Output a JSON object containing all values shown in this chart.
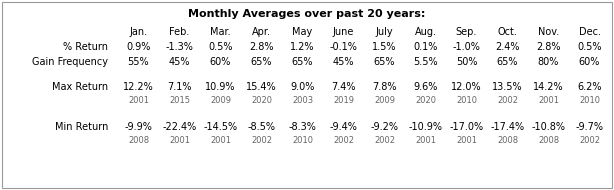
{
  "title": "Monthly Averages over past 20 years:",
  "columns": [
    "Jan.",
    "Feb.",
    "Mar.",
    "Apr.",
    "May",
    "June",
    "July",
    "Aug.",
    "Sep.",
    "Oct.",
    "Nov.",
    "Dec."
  ],
  "pct_return": [
    "0.9%",
    "-1.3%",
    "0.5%",
    "2.8%",
    "1.2%",
    "-0.1%",
    "1.5%",
    "0.1%",
    "-1.0%",
    "2.4%",
    "2.8%",
    "0.5%"
  ],
  "gain_freq": [
    "55%",
    "45%",
    "60%",
    "65%",
    "65%",
    "45%",
    "65%",
    "5.5%",
    "50%",
    "65%",
    "80%",
    "60%"
  ],
  "max_return": [
    "12.2%",
    "7.1%",
    "10.9%",
    "15.4%",
    "9.0%",
    "7.4%",
    "7.8%",
    "9.6%",
    "12.0%",
    "13.5%",
    "14.2%",
    "6.2%"
  ],
  "max_year": [
    "2001",
    "2015",
    "2009",
    "2020",
    "2003",
    "2019",
    "2009",
    "2020",
    "2010",
    "2002",
    "2001",
    "2010"
  ],
  "min_return": [
    "-9.9%",
    "-22.4%",
    "-14.5%",
    "-8.5%",
    "-8.3%",
    "-9.4%",
    "-9.2%",
    "-10.9%",
    "-17.0%",
    "-17.4%",
    "-10.8%",
    "-9.7%"
  ],
  "min_year": [
    "2008",
    "2001",
    "2001",
    "2002",
    "2010",
    "2002",
    "2002",
    "2001",
    "2001",
    "2008",
    "2008",
    "2002"
  ],
  "bg_color": "#ffffff",
  "title_color": "#000000",
  "text_color": "#000000",
  "year_color": "#666666",
  "border_color": "#999999",
  "title_fontsize": 8.0,
  "header_fontsize": 7.0,
  "data_fontsize": 7.0,
  "year_fontsize": 6.0
}
